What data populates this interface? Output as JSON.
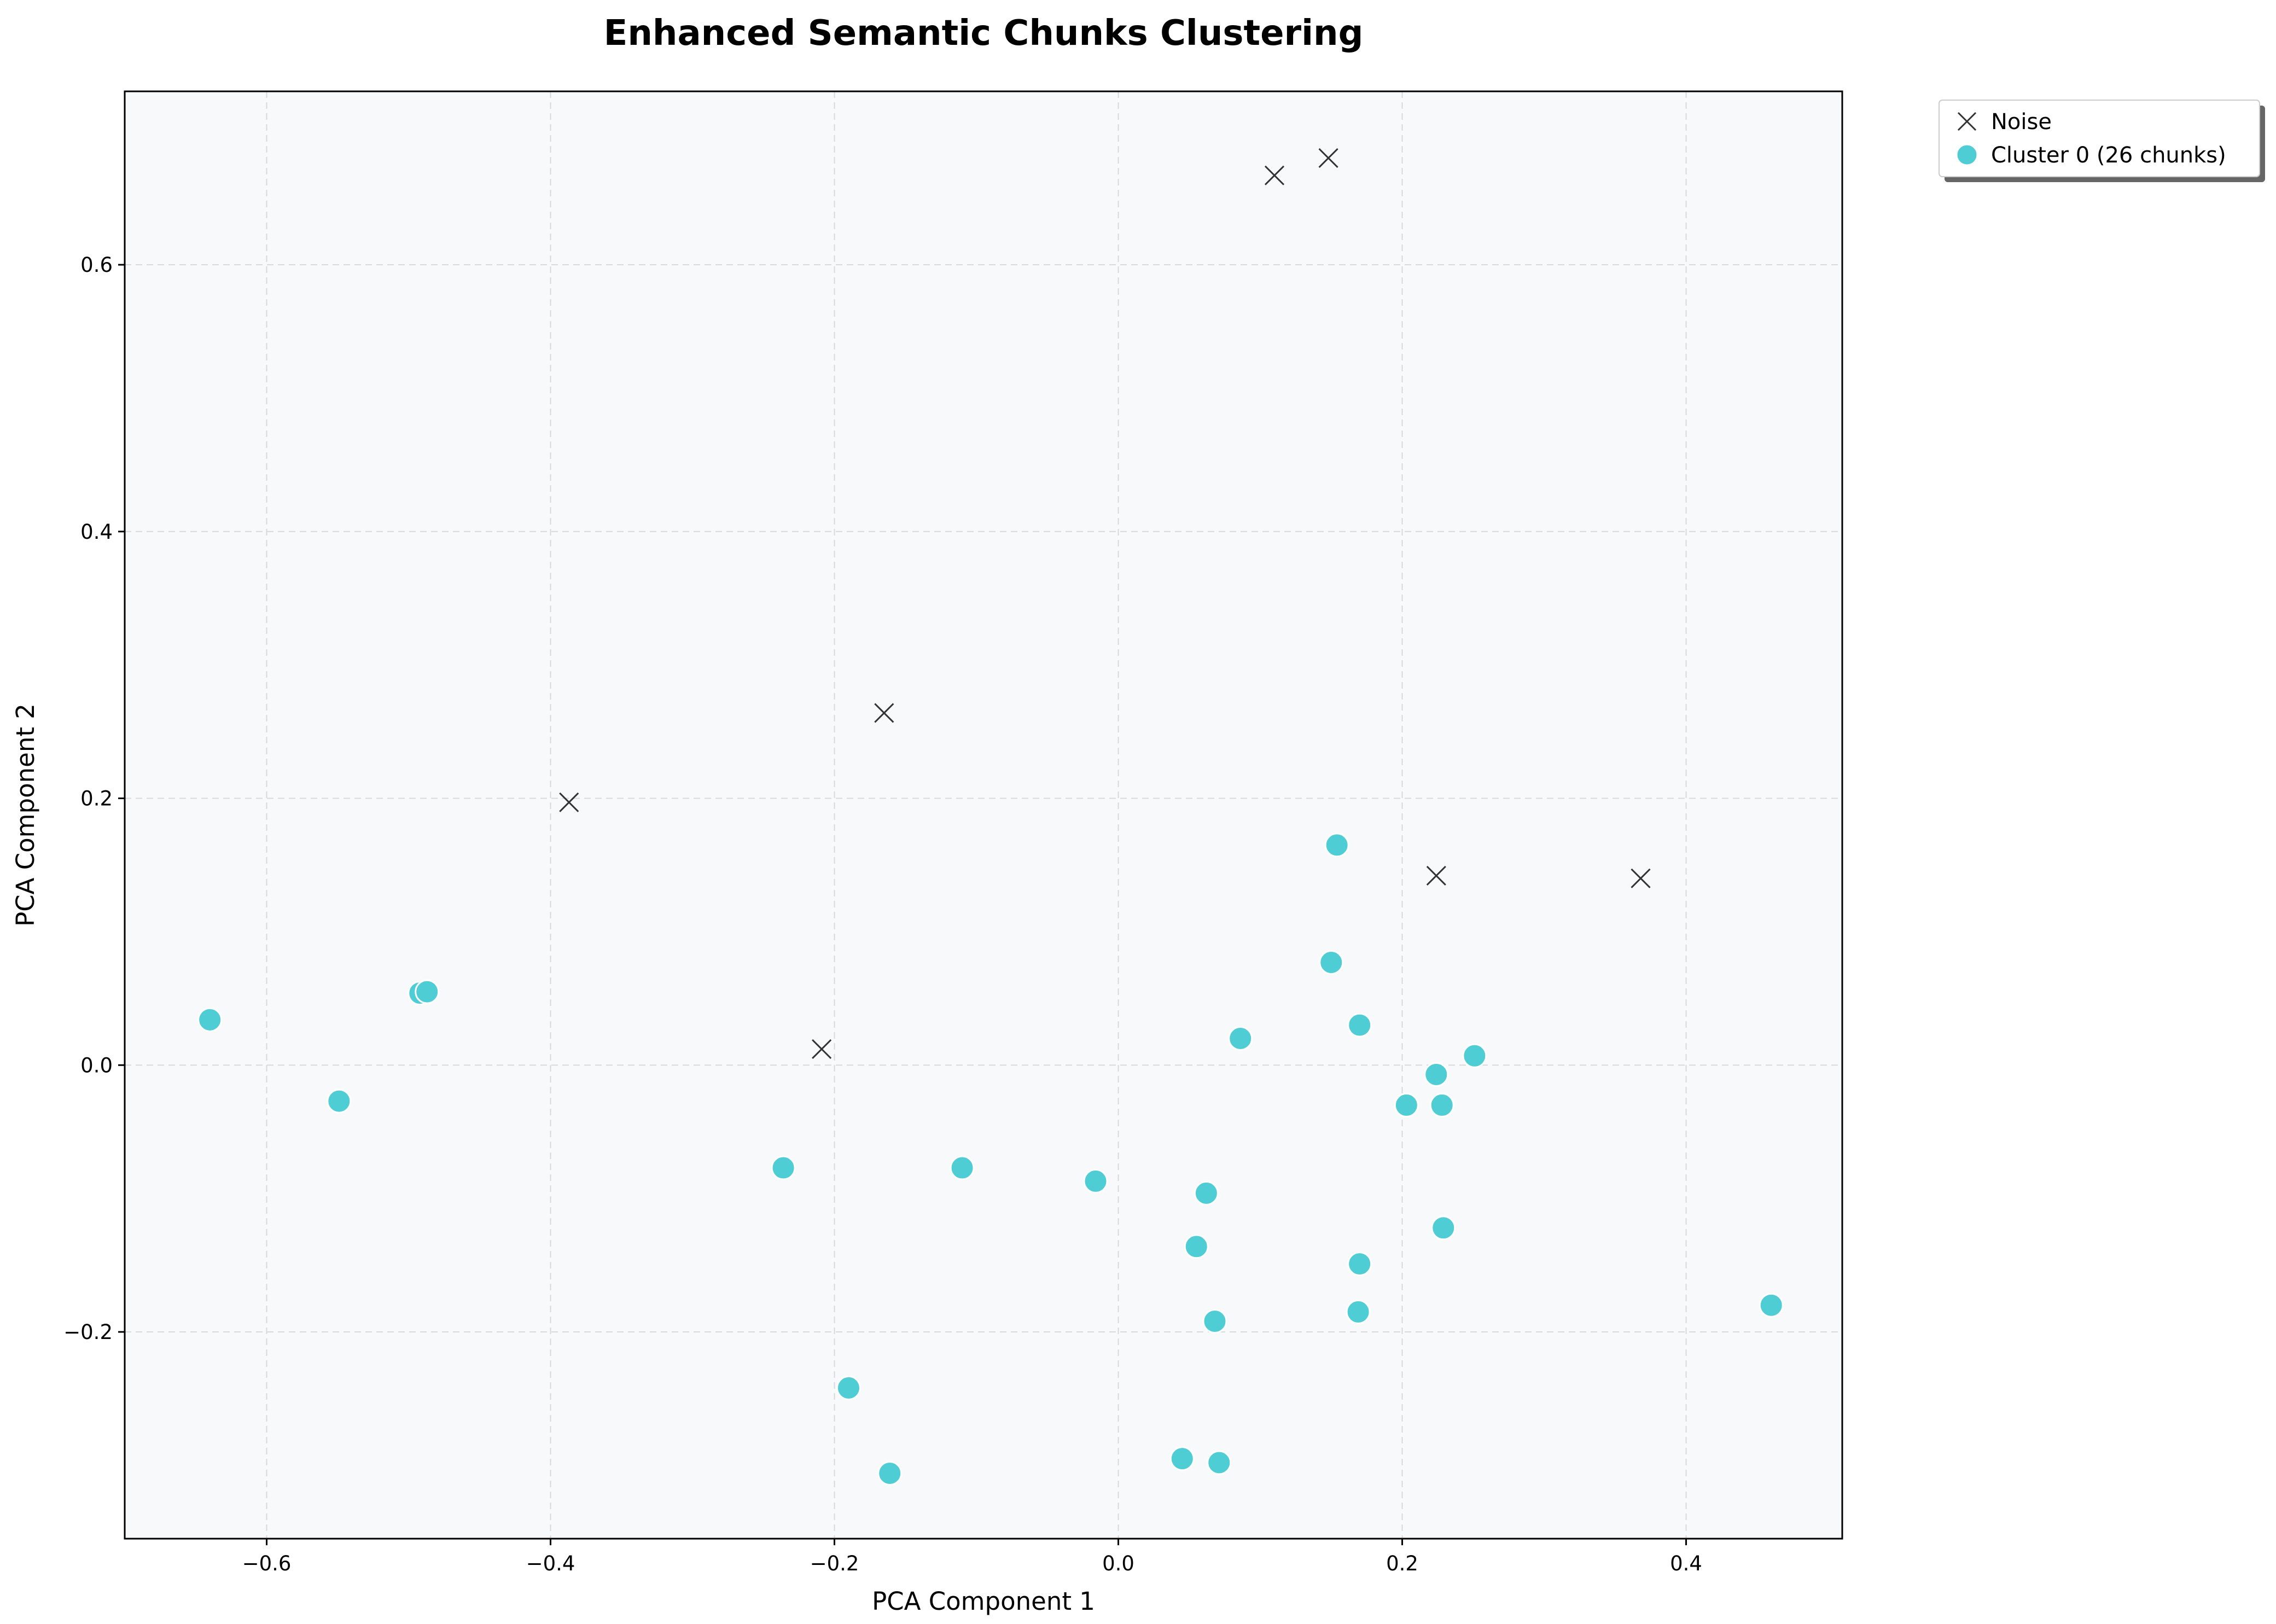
{
  "chart_data": {
    "type": "scatter",
    "title": "Enhanced Semantic Chunks Clustering",
    "xlabel": "PCA Component 1",
    "ylabel": "PCA Component 2",
    "xlim": [
      -0.7,
      0.51
    ],
    "ylim": [
      -0.355,
      0.73
    ],
    "x_ticks": [
      -0.6,
      -0.4,
      -0.2,
      0.0,
      0.2,
      0.4
    ],
    "y_ticks": [
      -0.2,
      0.0,
      0.2,
      0.4,
      0.6
    ],
    "x_tick_labels": [
      "−0.6",
      "−0.4",
      "−0.2",
      "0.0",
      "0.2",
      "0.4"
    ],
    "y_tick_labels": [
      "−0.2",
      "0.0",
      "0.2",
      "0.4",
      "0.6"
    ],
    "grid": true,
    "legend_position": "outside-top-right",
    "background_color": "#f8f9fa",
    "series": [
      {
        "name": "Noise",
        "marker": "x",
        "color": "#333333",
        "points": [
          {
            "x": 0.11,
            "y": 0.667
          },
          {
            "x": 0.148,
            "y": 0.68
          },
          {
            "x": -0.165,
            "y": 0.264
          },
          {
            "x": -0.387,
            "y": 0.197
          },
          {
            "x": 0.224,
            "y": 0.142
          },
          {
            "x": 0.368,
            "y": 0.14
          },
          {
            "x": -0.209,
            "y": 0.012
          }
        ]
      },
      {
        "name": "Cluster 0 (26 chunks)",
        "marker": "circle",
        "color": "#4ecdd4",
        "points": [
          {
            "x": -0.64,
            "y": 0.034
          },
          {
            "x": -0.549,
            "y": -0.027
          },
          {
            "x": -0.492,
            "y": 0.054
          },
          {
            "x": -0.487,
            "y": 0.055
          },
          {
            "x": -0.236,
            "y": -0.077
          },
          {
            "x": -0.11,
            "y": -0.077
          },
          {
            "x": -0.016,
            "y": -0.087
          },
          {
            "x": 0.062,
            "y": -0.096
          },
          {
            "x": 0.055,
            "y": -0.136
          },
          {
            "x": 0.086,
            "y": 0.02
          },
          {
            "x": 0.154,
            "y": 0.165
          },
          {
            "x": 0.15,
            "y": 0.077
          },
          {
            "x": 0.17,
            "y": 0.03
          },
          {
            "x": 0.224,
            "y": -0.007
          },
          {
            "x": 0.251,
            "y": 0.007
          },
          {
            "x": 0.203,
            "y": -0.03
          },
          {
            "x": 0.228,
            "y": -0.03
          },
          {
            "x": 0.229,
            "y": -0.122
          },
          {
            "x": 0.17,
            "y": -0.149
          },
          {
            "x": 0.169,
            "y": -0.185
          },
          {
            "x": 0.068,
            "y": -0.192
          },
          {
            "x": 0.045,
            "y": -0.295
          },
          {
            "x": 0.071,
            "y": -0.298
          },
          {
            "x": -0.19,
            "y": -0.242
          },
          {
            "x": -0.161,
            "y": -0.306
          },
          {
            "x": 0.46,
            "y": -0.18
          }
        ]
      }
    ]
  }
}
